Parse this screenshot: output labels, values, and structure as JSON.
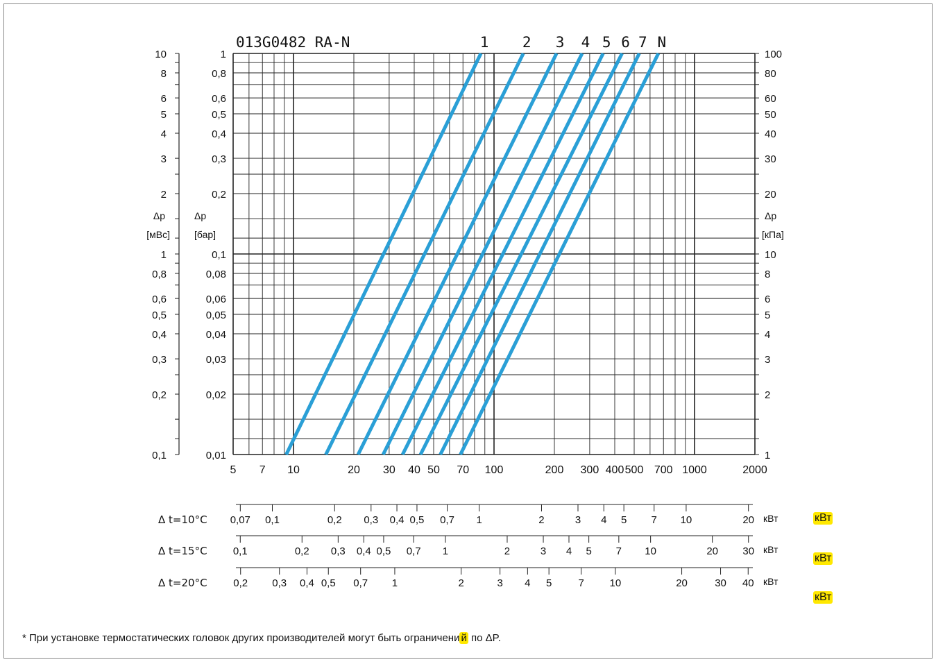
{
  "chart_data": {
    "type": "line",
    "title": "013G0482 RA-N",
    "xscale": "log",
    "yscale": "log",
    "xlim": [
      5,
      2000
    ],
    "ylim_bar": [
      0.01,
      1
    ],
    "x_ticks": [
      "5",
      "7",
      "10",
      "20",
      "30",
      "40",
      "50",
      "70",
      "100",
      "200",
      "300",
      "400",
      "500",
      "700",
      "1000",
      "2000"
    ],
    "x_tick_values": [
      5,
      7,
      10,
      20,
      30,
      40,
      50,
      70,
      100,
      200,
      300,
      400,
      500,
      700,
      1000,
      2000
    ],
    "y_bar_ticks": [
      "1",
      "0,8",
      "0,6",
      "0,5",
      "0,4",
      "0,3",
      "0,2",
      "0,1",
      "0,08",
      "0,06",
      "0,05",
      "0,04",
      "0,03",
      "0,02",
      "0,01"
    ],
    "y_mwc_ticks": [
      "10",
      "8",
      "6",
      "5",
      "4",
      "3",
      "2",
      "1",
      "0,8",
      "0,6",
      "0,5",
      "0,4",
      "0,3",
      "0,2",
      "0,1"
    ],
    "y_kpa_ticks": [
      "100",
      "80",
      "60",
      "50",
      "40",
      "30",
      "20",
      "10",
      "8",
      "6",
      "5",
      "4",
      "3",
      "2",
      "1"
    ],
    "y_tick_values": [
      1,
      0.8,
      0.6,
      0.5,
      0.4,
      0.3,
      0.2,
      0.1,
      0.08,
      0.06,
      0.05,
      0.04,
      0.03,
      0.02,
      0.01
    ],
    "y_left_label": "Δp",
    "y_left_unit": "[мВс]",
    "y_mid_label": "Δp",
    "y_mid_unit": "[бар]",
    "y_right_label": "Δp",
    "y_right_unit": "[кПа]",
    "line_color": "#2a9fd6",
    "series": [
      {
        "name": "1",
        "points": [
          [
            9.2,
            0.01
          ],
          [
            86,
            1
          ]
        ]
      },
      {
        "name": "2",
        "points": [
          [
            14.5,
            0.01
          ],
          [
            140,
            1
          ]
        ]
      },
      {
        "name": "3",
        "points": [
          [
            21,
            0.01
          ],
          [
            205,
            1
          ]
        ]
      },
      {
        "name": "4",
        "points": [
          [
            28,
            0.01
          ],
          [
            275,
            1
          ]
        ]
      },
      {
        "name": "5",
        "points": [
          [
            35,
            0.01
          ],
          [
            350,
            1
          ]
        ]
      },
      {
        "name": "6",
        "points": [
          [
            43,
            0.01
          ],
          [
            435,
            1
          ]
        ]
      },
      {
        "name": "7",
        "points": [
          [
            54,
            0.01
          ],
          [
            530,
            1
          ]
        ]
      },
      {
        "name": "N",
        "points": [
          [
            68,
            0.01
          ],
          [
            660,
            1
          ]
        ]
      }
    ],
    "power_scales": [
      {
        "label": "Δ t=10°C",
        "unit": "кВт",
        "ticks": [
          "0,07",
          "0,1",
          "0,2",
          "0,3",
          "0,4",
          "0,5",
          "0,7",
          "1",
          "2",
          "3",
          "4",
          "5",
          "7",
          "10",
          "20"
        ],
        "values": [
          0.07,
          0.1,
          0.2,
          0.3,
          0.4,
          0.5,
          0.7,
          1,
          2,
          3,
          4,
          5,
          7,
          10,
          20
        ]
      },
      {
        "label": "Δ t=15°C",
        "unit": "кВт",
        "ticks": [
          "0,1",
          "0,2",
          "0,3",
          "0,4",
          "0,5",
          "0,7",
          "1",
          "2",
          "3",
          "4",
          "5",
          "7",
          "10",
          "20",
          "30"
        ],
        "values": [
          0.1,
          0.2,
          0.3,
          0.4,
          0.5,
          0.7,
          1,
          2,
          3,
          4,
          5,
          7,
          10,
          20,
          30
        ]
      },
      {
        "label": "Δ t=20°C",
        "unit": "кВт",
        "ticks": [
          "0,2",
          "0,3",
          "0,4",
          "0,5",
          "0,7",
          "1",
          "2",
          "3",
          "4",
          "5",
          "7",
          "10",
          "20",
          "30",
          "40"
        ],
        "values": [
          0.2,
          0.3,
          0.4,
          0.5,
          0.7,
          1,
          2,
          3,
          4,
          5,
          7,
          10,
          20,
          30,
          40
        ]
      }
    ]
  },
  "highlight_units": [
    "кВт",
    "кВт",
    "кВт"
  ],
  "highlight_color": "#ffe800",
  "footnote": {
    "prefix": "* При установке термостатических головок других производителей могут быть ограничени",
    "highlighted": "й",
    "suffix": " по ΔP."
  }
}
